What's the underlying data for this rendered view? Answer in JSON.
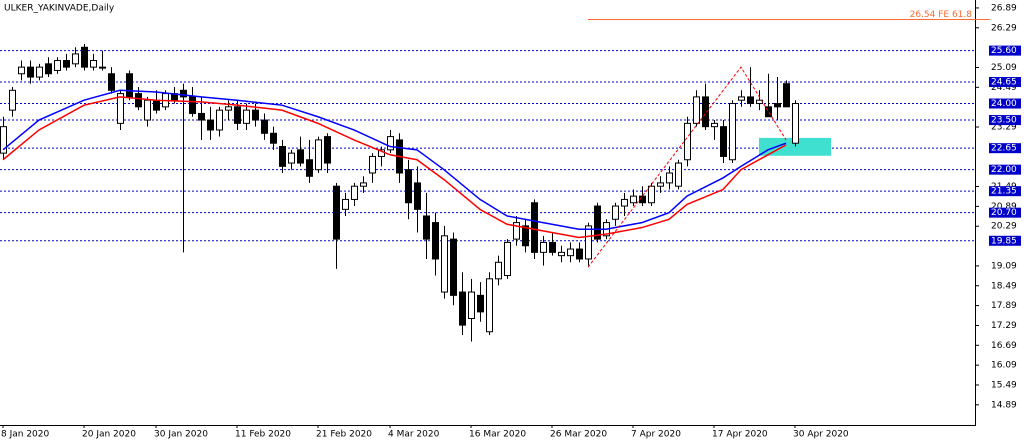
{
  "chart_data": {
    "type": "candlestick",
    "title": "ULKER_YAKINVADE,Daily",
    "categories": [
      "8 Jan 2020",
      null,
      null,
      null,
      null,
      null,
      null,
      null,
      null,
      "20 Jan 2020",
      null,
      null,
      null,
      null,
      null,
      null,
      null,
      "30 Jan 2020",
      null,
      null,
      null,
      null,
      null,
      null,
      null,
      null,
      "11 Feb 2020",
      null,
      null,
      null,
      null,
      null,
      null,
      null,
      null,
      "21 Feb 2020",
      null,
      null,
      null,
      null,
      null,
      null,
      null,
      "4 Mar 2020",
      null,
      null,
      null,
      null,
      null,
      null,
      null,
      null,
      "16 Mar 2020",
      null,
      null,
      null,
      null,
      null,
      null,
      null,
      null,
      "26 Mar 2020",
      null,
      null,
      null,
      null,
      null,
      null,
      null,
      null,
      "7 Apr 2020",
      null,
      null,
      null,
      null,
      null,
      null,
      null,
      null,
      "17 Apr 2020",
      null,
      null,
      null,
      null,
      null,
      null,
      null,
      null,
      "30 Apr 2020"
    ],
    "open": [
      22.5,
      23.8,
      24.9,
      25.1,
      24.8,
      25.2,
      25.0,
      25.3,
      25.2,
      25.7,
      25.1,
      25.1,
      24.9,
      23.4,
      24.9,
      24.3,
      23.5,
      24.1,
      23.9,
      24.3,
      24.4,
      24.2,
      23.7,
      23.5,
      23.2,
      23.8,
      23.9,
      23.4,
      23.8,
      23.5,
      23.1,
      22.7,
      22.2,
      22.6,
      22.3,
      22.0,
      23.0,
      21.5,
      20.8,
      21.1,
      21.5,
      21.9,
      22.4,
      22.6,
      22.9,
      22.0,
      21.6,
      20.6,
      20.4,
      18.3,
      19.9,
      18.3,
      17.5,
      18.2,
      17.1,
      18.7,
      18.8,
      19.9,
      20.3,
      21.0,
      19.5,
      19.8,
      19.4,
      19.4,
      19.6,
      19.3,
      20.9,
      20.0,
      20.5,
      20.9,
      21.0,
      21.2,
      21.0,
      21.5,
      21.6,
      21.5,
      22.3,
      23.4,
      24.2,
      23.3,
      23.3,
      22.3,
      24.1,
      24.2,
      24.0,
      23.9,
      24.0,
      24.6,
      22.8
    ],
    "high": [
      23.6,
      24.5,
      25.3,
      25.3,
      25.2,
      25.4,
      25.4,
      25.5,
      25.7,
      25.8,
      25.5,
      25.6,
      25.1,
      24.4,
      25.0,
      24.5,
      24.2,
      24.4,
      24.4,
      24.5,
      24.6,
      24.5,
      24.2,
      23.9,
      23.9,
      24.1,
      24.1,
      24.0,
      24.0,
      23.7,
      23.3,
      22.9,
      22.6,
      23.0,
      22.9,
      23.0,
      23.1,
      21.6,
      21.3,
      21.6,
      21.8,
      22.5,
      22.7,
      23.2,
      23.1,
      22.3,
      22.1,
      21.3,
      20.7,
      20.3,
      20.1,
      18.9,
      18.7,
      18.6,
      18.9,
      19.4,
      19.9,
      20.6,
      20.5,
      21.1,
      20.0,
      20.1,
      19.7,
      19.8,
      19.8,
      20.4,
      21.0,
      20.5,
      21.0,
      21.3,
      21.4,
      21.5,
      21.6,
      21.8,
      22.1,
      22.3,
      23.6,
      24.4,
      24.6,
      23.5,
      23.5,
      24.1,
      24.4,
      25.1,
      24.4,
      24.9,
      24.8,
      24.7,
      24.1
    ],
    "low": [
      22.3,
      23.6,
      24.7,
      24.6,
      24.7,
      24.8,
      24.9,
      25.0,
      25.1,
      25.0,
      25.0,
      25.0,
      24.3,
      23.2,
      24.1,
      23.8,
      23.3,
      23.7,
      23.8,
      24.0,
      19.5,
      23.6,
      22.9,
      22.9,
      23.0,
      23.5,
      23.2,
      23.2,
      23.3,
      22.9,
      22.6,
      21.9,
      22.0,
      22.1,
      21.6,
      21.9,
      21.9,
      19.0,
      20.6,
      20.9,
      21.3,
      21.6,
      22.1,
      22.5,
      21.6,
      20.5,
      20.1,
      19.3,
      18.8,
      18.1,
      17.9,
      17.0,
      16.8,
      17.4,
      17.0,
      18.5,
      18.7,
      19.7,
      19.5,
      19.3,
      19.1,
      19.4,
      19.2,
      19.2,
      19.2,
      19.1,
      19.8,
      19.9,
      20.3,
      20.6,
      20.9,
      20.9,
      20.9,
      21.3,
      21.4,
      21.4,
      22.1,
      23.3,
      23.2,
      22.9,
      22.2,
      22.2,
      23.9,
      23.9,
      23.8,
      23.6,
      23.5,
      23.9,
      22.7
    ],
    "close": [
      23.3,
      24.4,
      25.1,
      24.8,
      25.1,
      24.9,
      25.3,
      25.1,
      25.5,
      25.1,
      25.3,
      25.1,
      24.4,
      24.3,
      24.2,
      23.9,
      24.1,
      23.8,
      24.3,
      24.1,
      24.2,
      23.7,
      23.5,
      23.2,
      23.8,
      23.9,
      23.4,
      23.8,
      23.5,
      23.1,
      22.8,
      22.1,
      22.5,
      22.2,
      21.8,
      22.9,
      22.2,
      19.9,
      21.1,
      21.5,
      21.6,
      22.4,
      22.6,
      23.0,
      21.9,
      21.0,
      20.8,
      19.9,
      19.3,
      20.0,
      18.2,
      17.3,
      18.3,
      17.7,
      18.7,
      19.2,
      19.8,
      20.4,
      19.7,
      19.5,
      19.8,
      19.5,
      19.5,
      19.6,
      19.3,
      20.3,
      19.9,
      20.4,
      20.9,
      21.1,
      21.2,
      21.0,
      21.5,
      21.6,
      21.9,
      22.2,
      23.4,
      24.2,
      23.3,
      23.4,
      22.4,
      24.0,
      24.2,
      24.0,
      24.1,
      23.6,
      23.9,
      23.9,
      24.0
    ],
    "lines": [
      {
        "color": "#0000ff",
        "x": [
          0,
          4,
          9,
          13,
          17,
          22,
          26,
          31,
          35,
          39,
          43,
          46,
          49,
          53,
          56,
          60,
          64,
          67,
          71,
          74,
          76,
          80,
          82,
          85,
          87
        ],
        "values": [
          22.6,
          23.5,
          24.1,
          24.4,
          24.35,
          24.2,
          24.1,
          23.95,
          23.6,
          23.2,
          22.7,
          22.6,
          22.0,
          21.1,
          20.6,
          20.4,
          20.2,
          20.2,
          20.4,
          20.7,
          21.2,
          21.75,
          22.1,
          22.6,
          22.8
        ]
      },
      {
        "color": "#ff0000",
        "x": [
          0,
          4,
          9,
          13,
          17,
          22,
          26,
          31,
          35,
          39,
          43,
          46,
          49,
          53,
          56,
          60,
          64,
          67,
          71,
          74,
          76,
          80,
          82,
          85,
          87
        ],
        "values": [
          22.3,
          23.2,
          23.95,
          24.2,
          24.1,
          24.05,
          23.95,
          23.8,
          23.4,
          22.9,
          22.45,
          22.3,
          21.7,
          20.8,
          20.35,
          20.15,
          19.95,
          20.05,
          20.25,
          20.5,
          20.95,
          21.4,
          22.0,
          22.45,
          22.75
        ]
      }
    ],
    "levels": [
      {
        "value": 25.6,
        "label": "25.60"
      },
      {
        "value": 24.65,
        "label": "24.65"
      },
      {
        "value": 24.0,
        "label": "24.00"
      },
      {
        "value": 23.5,
        "label": "23.50"
      },
      {
        "value": 22.65,
        "label": "22.65"
      },
      {
        "value": 22.0,
        "label": "22.00"
      },
      {
        "value": 21.35,
        "label": "21.35"
      },
      {
        "value": 20.7,
        "label": "20.70"
      },
      {
        "value": 19.85,
        "label": "19.85"
      }
    ],
    "level_color": "#0000c8",
    "zigzag": {
      "color": "#ff0000",
      "x": [
        65,
        82,
        87
      ],
      "values": [
        19.05,
        25.1,
        22.9
      ]
    },
    "zone": {
      "color": "#40e0d0",
      "x": [
        84,
        92
      ],
      "values": [
        22.42,
        22.96
      ]
    },
    "fib": {
      "color": "#ff6a30",
      "x": 65,
      "value": 26.54,
      "label": "26.54 FE 61.8"
    },
    "ylim": [
      14.28,
      27.13
    ],
    "yticks": [
      26.89,
      26.29,
      25.09,
      24.49,
      23.29,
      21.49,
      20.89,
      20.29,
      19.09,
      18.49,
      17.89,
      17.29,
      16.69,
      16.09,
      15.49,
      14.89
    ]
  }
}
